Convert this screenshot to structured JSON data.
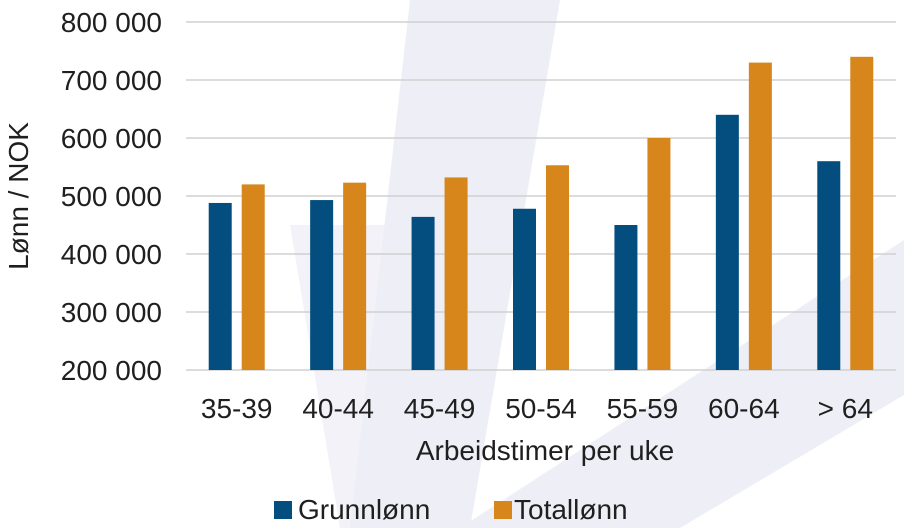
{
  "chart_data": {
    "type": "bar",
    "xlabel": "Arbeidstimer per uke",
    "ylabel": "Lønn / NOK",
    "categories": [
      "35-39",
      "40-44",
      "45-49",
      "50-54",
      "55-59",
      "60-64",
      "> 64"
    ],
    "ylim": [
      200000,
      800000
    ],
    "y_ticks": [
      200000,
      300000,
      400000,
      500000,
      600000,
      700000,
      800000
    ],
    "y_tick_labels": [
      "200 000",
      "300 000",
      "400 000",
      "500 000",
      "600 000",
      "700 000",
      "800 000"
    ],
    "grid": true,
    "legend_position": "bottom",
    "series": [
      {
        "name": "Grunnlønn",
        "color": "#044e7f",
        "values": [
          488000,
          493000,
          464000,
          478000,
          450000,
          640000,
          560000
        ]
      },
      {
        "name": "Totallønn",
        "color": "#d6861b",
        "values": [
          520000,
          523000,
          532000,
          553000,
          600000,
          730000,
          740000
        ]
      }
    ]
  }
}
